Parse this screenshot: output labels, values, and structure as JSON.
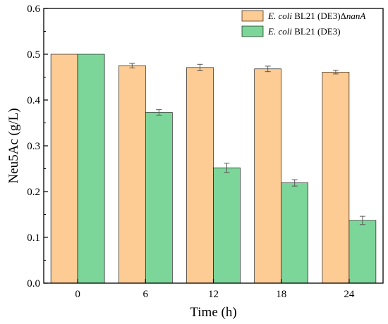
{
  "chart_data": {
    "type": "bar",
    "categories": [
      "0",
      "6",
      "12",
      "18",
      "24"
    ],
    "xlabel": "Time (h)",
    "ylabel": "Neu5Ac (g/L)",
    "ylim": [
      0,
      0.6
    ],
    "yticks": [
      "0.0",
      "0.1",
      "0.2",
      "0.3",
      "0.4",
      "0.5",
      "0.6"
    ],
    "grid": false,
    "legend_position": "top-right",
    "series": [
      {
        "name": "E. coli BL21 (DE3)ΔnanA",
        "name_parts": {
          "italic": "E. coli",
          "plain": " BL21 (DE3)Δ",
          "italic_suffix": "nanA"
        },
        "color": "#FDCB94",
        "values": [
          0.5,
          0.475,
          0.471,
          0.468,
          0.461
        ],
        "errors": [
          0.0,
          0.005,
          0.007,
          0.006,
          0.004
        ]
      },
      {
        "name": "E. coli BL21 (DE3)",
        "name_parts": {
          "italic": "E. coli",
          "plain": " BL21 (DE3)",
          "italic_suffix": ""
        },
        "color": "#7DD699",
        "values": [
          0.5,
          0.373,
          0.252,
          0.219,
          0.137
        ],
        "errors": [
          0.0,
          0.006,
          0.01,
          0.007,
          0.009
        ]
      }
    ]
  }
}
